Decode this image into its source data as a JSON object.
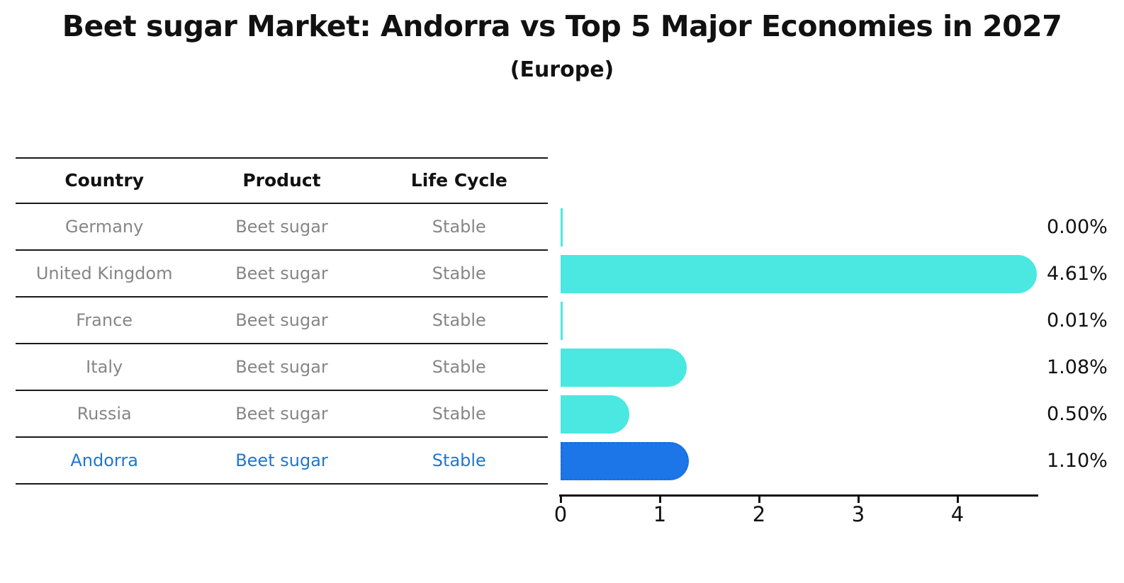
{
  "title": "Beet sugar Market: Andorra vs Top 5 Major Economies in 2027",
  "subtitle": "(Europe)",
  "table": {
    "headers": [
      "Country",
      "Product",
      "Life Cycle"
    ],
    "rows": [
      {
        "country": "Germany",
        "product": "Beet sugar",
        "life_cycle": "Stable",
        "highlight": false
      },
      {
        "country": "United Kingdom",
        "product": "Beet sugar",
        "life_cycle": "Stable",
        "highlight": false
      },
      {
        "country": "France",
        "product": "Beet sugar",
        "life_cycle": "Stable",
        "highlight": false
      },
      {
        "country": "Italy",
        "product": "Beet sugar",
        "life_cycle": "Stable",
        "highlight": false
      },
      {
        "country": "Russia",
        "product": "Beet sugar",
        "life_cycle": "Stable",
        "highlight": true
      }
    ],
    "highlight_row": {
      "country": "Andorra",
      "product": "Beet sugar",
      "life_cycle": "Stable"
    }
  },
  "chart_data": {
    "type": "bar",
    "orientation": "horizontal",
    "title": "Beet sugar Market: Andorra vs Top 5 Major Economies in 2027",
    "subtitle": "(Europe)",
    "categories": [
      "Germany",
      "United Kingdom",
      "France",
      "Italy",
      "Russia",
      "Andorra"
    ],
    "values": [
      0.0,
      4.61,
      0.01,
      1.08,
      0.5,
      1.1
    ],
    "value_labels": [
      "0.00%",
      "4.61%",
      "0.01%",
      "1.08%",
      "0.50%",
      "1.10%"
    ],
    "x_ticks": [
      "0",
      "1",
      "2",
      "3",
      "4"
    ],
    "xlim": [
      0,
      4.85
    ],
    "grid": false,
    "legend": false,
    "highlight_index": 5,
    "colors": {
      "bar": "#4AE8E1",
      "highlight_bar": "#1C76E8",
      "highlight_border": "#1b6fd8",
      "highlight_text": "#2077CE",
      "table_text": "#868686",
      "axis": "#111111"
    }
  }
}
